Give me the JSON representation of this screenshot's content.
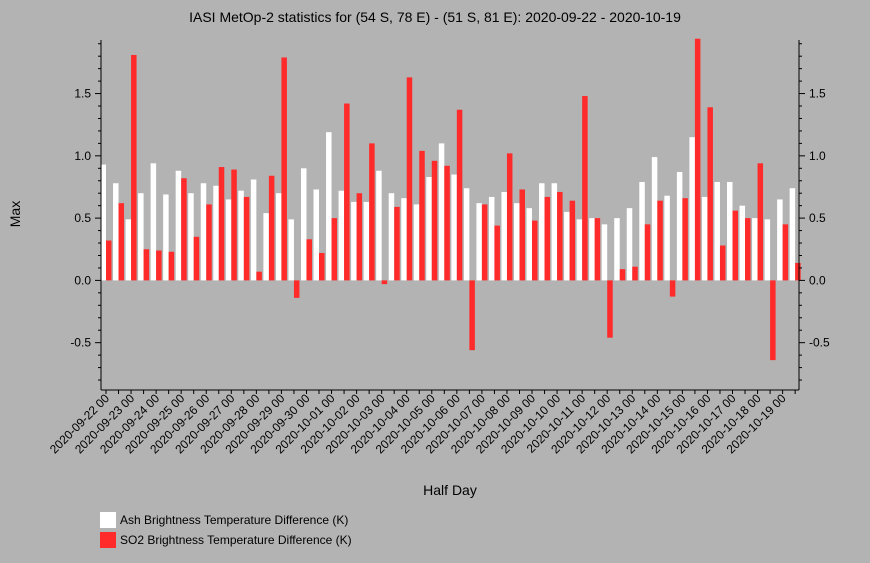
{
  "chart_data": {
    "type": "bar",
    "title": "IASI MetOp-2 statistics for (54 S, 78 E) - (51 S, 81 E): 2020-09-22 - 2020-10-19",
    "xlabel": "Half Day",
    "ylabel": "Max",
    "ylim": [
      -0.88,
      1.93
    ],
    "yticks": [
      -0.5,
      0.0,
      0.5,
      1.0,
      1.5
    ],
    "ytick_labels": [
      "-0.5",
      "0.0",
      "0.5",
      "1.0",
      "1.5"
    ],
    "grid": false,
    "legend_position": "bottom-left",
    "categories": [
      "2020-09-22 00",
      "2020-09-22 12",
      "2020-09-23 00",
      "2020-09-23 12",
      "2020-09-24 00",
      "2020-09-24 12",
      "2020-09-25 00",
      "2020-09-25 12",
      "2020-09-26 00",
      "2020-09-26 12",
      "2020-09-27 00",
      "2020-09-27 12",
      "2020-09-28 00",
      "2020-09-28 12",
      "2020-09-29 00",
      "2020-09-29 12",
      "2020-09-30 00",
      "2020-09-30 12",
      "2020-10-01 00",
      "2020-10-01 12",
      "2020-10-02 00",
      "2020-10-02 12",
      "2020-10-03 00",
      "2020-10-03 12",
      "2020-10-04 00",
      "2020-10-04 12",
      "2020-10-05 00",
      "2020-10-05 12",
      "2020-10-06 00",
      "2020-10-06 12",
      "2020-10-07 00",
      "2020-10-07 12",
      "2020-10-08 00",
      "2020-10-08 12",
      "2020-10-09 00",
      "2020-10-09 12",
      "2020-10-10 00",
      "2020-10-10 12",
      "2020-10-11 00",
      "2020-10-11 12",
      "2020-10-12 00",
      "2020-10-12 12",
      "2020-10-13 00",
      "2020-10-13 12",
      "2020-10-14 00",
      "2020-10-14 12",
      "2020-10-15 00",
      "2020-10-15 12",
      "2020-10-16 00",
      "2020-10-16 12",
      "2020-10-17 00",
      "2020-10-17 12",
      "2020-10-18 00",
      "2020-10-18 12",
      "2020-10-19 00",
      "2020-10-19 12"
    ],
    "x_tick_labels": [
      "2020-09-22 00",
      "2020-09-23 00",
      "2020-09-24 00",
      "2020-09-25 00",
      "2020-09-26 00",
      "2020-09-27 00",
      "2020-09-28 00",
      "2020-09-29 00",
      "2020-09-30 00",
      "2020-10-01 00",
      "2020-10-02 00",
      "2020-10-03 00",
      "2020-10-04 00",
      "2020-10-05 00",
      "2020-10-06 00",
      "2020-10-07 00",
      "2020-10-08 00",
      "2020-10-09 00",
      "2020-10-10 00",
      "2020-10-11 00",
      "2020-10-12 00",
      "2020-10-13 00",
      "2020-10-14 00",
      "2020-10-15 00",
      "2020-10-16 00",
      "2020-10-17 00",
      "2020-10-18 00",
      "2020-10-19 00"
    ],
    "series": [
      {
        "name": "Ash Brightness Temperature Difference (K)",
        "color": "#ffffff",
        "values": [
          0.93,
          0.78,
          0.49,
          0.7,
          0.94,
          0.69,
          0.88,
          0.7,
          0.78,
          0.76,
          0.65,
          0.72,
          0.81,
          0.54,
          0.7,
          0.49,
          0.9,
          0.73,
          1.19,
          0.72,
          0.63,
          0.63,
          0.88,
          0.7,
          0.66,
          0.61,
          0.83,
          1.1,
          0.85,
          0.74,
          0.62,
          0.67,
          0.71,
          0.62,
          0.58,
          0.78,
          0.78,
          0.55,
          0.49,
          0.5,
          0.45,
          0.5,
          0.58,
          0.79,
          0.99,
          0.68,
          0.87,
          1.15,
          0.67,
          0.79,
          0.79,
          0.6,
          0.5,
          0.49,
          0.65,
          0.74
        ]
      },
      {
        "name": "SO2 Brightness Temperature Difference (K)",
        "color": "#ff2a2a",
        "values": [
          0.32,
          0.62,
          1.81,
          0.25,
          0.24,
          0.23,
          0.82,
          0.35,
          0.61,
          0.91,
          0.89,
          0.67,
          0.07,
          0.84,
          1.79,
          -0.14,
          0.33,
          0.22,
          0.5,
          1.42,
          0.7,
          1.1,
          -0.03,
          0.59,
          1.63,
          1.04,
          0.96,
          0.92,
          1.37,
          -0.56,
          0.61,
          0.44,
          1.02,
          0.73,
          0.48,
          0.67,
          0.71,
          0.64,
          1.48,
          0.5,
          -0.46,
          0.09,
          0.11,
          0.45,
          0.64,
          -0.13,
          0.66,
          1.94,
          1.39,
          0.28,
          0.56,
          0.5,
          0.94,
          -0.64,
          0.45,
          0.14
        ]
      }
    ]
  }
}
